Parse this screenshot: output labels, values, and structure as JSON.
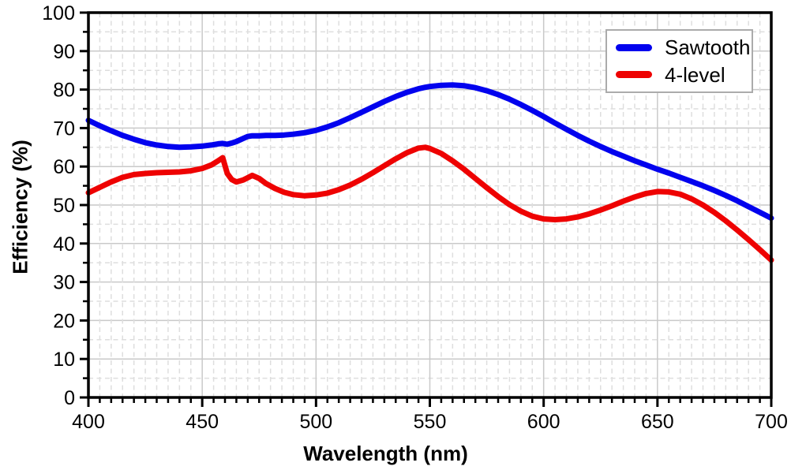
{
  "chart_data": {
    "type": "line",
    "title": "",
    "xlabel": "Wavelength (nm)",
    "ylabel": "Efficiency (%)",
    "xlim": [
      400,
      700
    ],
    "ylim": [
      0,
      100
    ],
    "x_ticks": [
      400,
      450,
      500,
      550,
      600,
      650,
      700
    ],
    "y_ticks": [
      0,
      10,
      20,
      30,
      40,
      50,
      60,
      70,
      80,
      90,
      100
    ],
    "x_minor_step": 5,
    "y_minor_step": 5,
    "grid": "major and minor on, minor dashed",
    "legend_position": "top-right",
    "colors": {
      "major_grid": "#c9c9c9",
      "minor_grid": "#dedede",
      "axis": "#000000",
      "background": "#ffffff"
    },
    "x": [
      400,
      405,
      410,
      415,
      420,
      425,
      430,
      435,
      440,
      445,
      450,
      454,
      457,
      459,
      461,
      463,
      465,
      468,
      470,
      472,
      475,
      478,
      482,
      486,
      490,
      495,
      500,
      505,
      510,
      515,
      520,
      525,
      530,
      535,
      540,
      545,
      548,
      550,
      555,
      560,
      565,
      570,
      575,
      580,
      585,
      590,
      595,
      600,
      605,
      610,
      615,
      620,
      625,
      630,
      635,
      640,
      645,
      650,
      655,
      660,
      665,
      670,
      675,
      680,
      685,
      690,
      695,
      700
    ],
    "series": [
      {
        "name": "Sawtooth",
        "color": "#0202ee",
        "values": [
          72.0,
          70.6,
          69.3,
          68.1,
          67.1,
          66.2,
          65.6,
          65.2,
          65.0,
          65.1,
          65.3,
          65.6,
          65.9,
          66.0,
          65.8,
          66.1,
          66.5,
          67.3,
          67.8,
          68.0,
          68.0,
          68.1,
          68.1,
          68.2,
          68.4,
          68.8,
          69.4,
          70.3,
          71.4,
          72.7,
          74.1,
          75.5,
          76.9,
          78.2,
          79.3,
          80.2,
          80.6,
          80.8,
          81.1,
          81.2,
          81.0,
          80.5,
          79.7,
          78.7,
          77.5,
          76.1,
          74.6,
          73.0,
          71.3,
          69.7,
          68.1,
          66.6,
          65.2,
          63.9,
          62.7,
          61.5,
          60.4,
          59.3,
          58.3,
          57.2,
          56.1,
          55.0,
          53.8,
          52.5,
          51.1,
          49.6,
          48.1,
          46.6
        ]
      },
      {
        "name": "4-level",
        "color": "#ee0202",
        "values": [
          53.2,
          54.6,
          56.0,
          57.2,
          57.9,
          58.2,
          58.4,
          58.5,
          58.6,
          58.9,
          59.5,
          60.4,
          61.5,
          62.3,
          58.2,
          56.6,
          56.0,
          56.5,
          57.1,
          57.7,
          56.9,
          55.6,
          54.3,
          53.3,
          52.7,
          52.4,
          52.6,
          53.1,
          54.0,
          55.2,
          56.7,
          58.4,
          60.2,
          62.0,
          63.6,
          64.8,
          65.0,
          64.7,
          63.4,
          61.5,
          59.3,
          56.9,
          54.5,
          52.2,
          50.1,
          48.4,
          47.1,
          46.4,
          46.2,
          46.4,
          46.9,
          47.7,
          48.7,
          49.8,
          51.0,
          52.1,
          53.0,
          53.5,
          53.4,
          52.8,
          51.6,
          50.0,
          48.1,
          45.9,
          43.5,
          41.0,
          38.4,
          35.7
        ]
      }
    ]
  }
}
